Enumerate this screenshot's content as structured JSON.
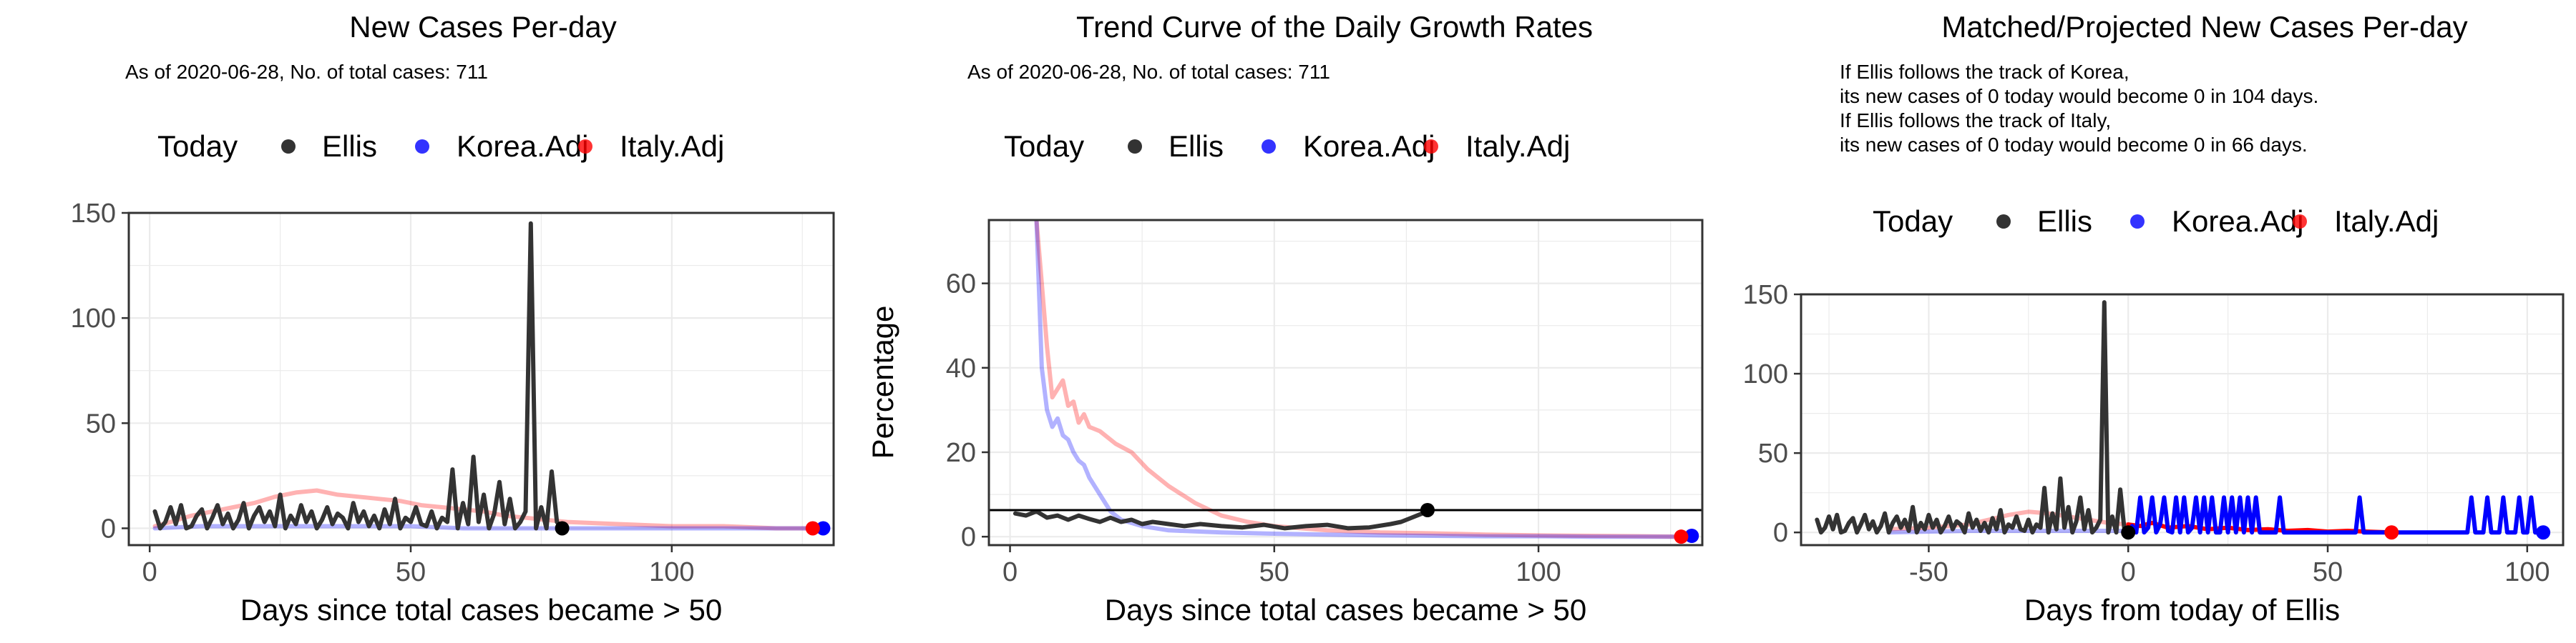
{
  "chart_data": [
    {
      "type": "line",
      "title": "New Cases Per-day",
      "subtitle": "As of 2020-06-28, No. of total cases: 711",
      "legend": {
        "items": [
          "Today",
          "Ellis",
          "Korea.Adj",
          "Italy.Adj"
        ],
        "placement": "top"
      },
      "xlabel": "Days since total cases became > 50",
      "ylabel": "",
      "xlim": [
        -4,
        131
      ],
      "ylim": [
        -8,
        150
      ],
      "xticks": [
        0,
        50,
        100
      ],
      "yticks": [
        0,
        50,
        100,
        150
      ],
      "grid": true,
      "series": [
        {
          "name": "Italy.Adj",
          "color": "#ff0000",
          "opacity": 0.3,
          "x": [
            1,
            4,
            8,
            12,
            16,
            20,
            24,
            28,
            32,
            36,
            40,
            44,
            48,
            52,
            56,
            60,
            64,
            68,
            72,
            76,
            80,
            90,
            100,
            110,
            120,
            127
          ],
          "y": [
            1,
            3,
            6,
            8,
            10,
            12,
            15,
            17,
            18,
            16,
            15,
            14,
            13,
            11,
            10,
            9,
            8,
            6,
            5,
            4,
            3,
            2,
            1,
            1,
            0,
            0
          ]
        },
        {
          "name": "Korea.Adj",
          "color": "#0000ff",
          "opacity": 0.3,
          "x": [
            1,
            10,
            20,
            30,
            40,
            50,
            60,
            70,
            80,
            90,
            100,
            110,
            120,
            129
          ],
          "y": [
            0,
            1,
            1,
            1,
            1,
            1,
            0,
            0,
            0,
            0,
            0,
            0,
            0,
            0
          ]
        },
        {
          "name": "Ellis",
          "color": "#333333",
          "opacity": 1,
          "x": [
            1,
            2,
            3,
            4,
            5,
            6,
            7,
            8,
            9,
            10,
            11,
            12,
            13,
            14,
            15,
            16,
            17,
            18,
            19,
            20,
            21,
            22,
            23,
            24,
            25,
            26,
            27,
            28,
            29,
            30,
            31,
            32,
            33,
            34,
            35,
            36,
            37,
            38,
            39,
            40,
            41,
            42,
            43,
            44,
            45,
            46,
            47,
            48,
            49,
            50,
            51,
            52,
            53,
            54,
            55,
            56,
            57,
            58,
            59,
            60,
            61,
            62,
            63,
            64,
            65,
            66,
            67,
            68,
            69,
            70,
            71,
            72,
            73,
            74,
            75,
            76,
            77,
            78,
            79
          ],
          "y": [
            8,
            0,
            3,
            10,
            2,
            11,
            0,
            1,
            6,
            9,
            0,
            5,
            11,
            2,
            7,
            0,
            4,
            12,
            0,
            6,
            10,
            3,
            8,
            1,
            16,
            0,
            6,
            2,
            11,
            3,
            8,
            0,
            4,
            10,
            2,
            7,
            5,
            0,
            12,
            3,
            8,
            1,
            6,
            0,
            9,
            2,
            14,
            0,
            5,
            3,
            10,
            2,
            1,
            8,
            0,
            5,
            3,
            28,
            0,
            12,
            2,
            34,
            3,
            16,
            0,
            7,
            22,
            2,
            14,
            0,
            3,
            8,
            145,
            0,
            10,
            0,
            27,
            3,
            0
          ]
        }
      ],
      "today_points": [
        {
          "series": "Ellis",
          "x": 79,
          "y": 0,
          "color": "#000000"
        },
        {
          "series": "Korea.Adj",
          "x": 129,
          "y": 0,
          "color": "#0000ff"
        },
        {
          "series": "Italy.Adj",
          "x": 127,
          "y": 0,
          "color": "#ff0000"
        }
      ]
    },
    {
      "type": "line",
      "title": "Trend Curve of the Daily Growth Rates",
      "subtitle": "As of 2020-06-28, No. of total cases: 711",
      "legend": {
        "items": [
          "Today",
          "Ellis",
          "Korea.Adj",
          "Italy.Adj"
        ],
        "placement": "top"
      },
      "xlabel": "Days since total cases became > 50",
      "ylabel": "Percentage",
      "xlim": [
        -4,
        131
      ],
      "ylim": [
        -2,
        75
      ],
      "xticks": [
        0,
        50,
        100
      ],
      "yticks": [
        0,
        20,
        40,
        60
      ],
      "grid": true,
      "hline": 6.3,
      "series": [
        {
          "name": "Italy.Adj",
          "color": "#ff0000",
          "opacity": 0.3,
          "x": [
            5,
            6,
            7,
            8,
            9,
            10,
            11,
            12,
            13,
            14,
            15,
            17,
            20,
            23,
            26,
            30,
            35,
            40,
            45,
            50,
            55,
            60,
            70,
            80,
            90,
            100,
            110,
            120,
            127
          ],
          "y": [
            75,
            60,
            45,
            33,
            35,
            37,
            31,
            32,
            27,
            29,
            26,
            25,
            22,
            20,
            16,
            12,
            8,
            5,
            3.5,
            2.5,
            2,
            1.5,
            1,
            0.8,
            0.5,
            0.3,
            0.2,
            0.1,
            0
          ]
        },
        {
          "name": "Korea.Adj",
          "color": "#0000ff",
          "opacity": 0.3,
          "x": [
            5,
            6,
            7,
            8,
            9,
            10,
            11,
            12,
            13,
            14,
            15,
            17,
            19,
            21,
            25,
            30,
            40,
            50,
            60,
            70,
            80,
            90,
            100,
            110,
            120,
            129
          ],
          "y": [
            75,
            40,
            30,
            26,
            28,
            24,
            23,
            20,
            18,
            17,
            14,
            10,
            6,
            4,
            2.5,
            1.5,
            1,
            0.7,
            0.5,
            0.3,
            0.2,
            0.1,
            0.1,
            0,
            0,
            0
          ]
        },
        {
          "name": "Ellis",
          "color": "#333333",
          "opacity": 1,
          "x": [
            1,
            3,
            5,
            7,
            9,
            11,
            13,
            15,
            17,
            19,
            21,
            23,
            25,
            27,
            30,
            33,
            36,
            40,
            44,
            48,
            52,
            56,
            60,
            64,
            68,
            72,
            74,
            76,
            78,
            79
          ],
          "y": [
            5.5,
            5,
            6,
            4.5,
            5,
            4,
            5,
            4.2,
            3.5,
            4.5,
            3.5,
            4,
            3,
            3.5,
            3,
            2.5,
            3,
            2.5,
            2.2,
            2.8,
            2,
            2.5,
            2.8,
            2,
            2.2,
            3,
            3.5,
            4.5,
            5.5,
            6.3
          ]
        }
      ],
      "today_points": [
        {
          "series": "Ellis",
          "x": 79,
          "y": 6.3,
          "color": "#000000"
        },
        {
          "series": "Korea.Adj",
          "x": 129,
          "y": 0.2,
          "color": "#0000ff"
        },
        {
          "series": "Italy.Adj",
          "x": 127,
          "y": 0,
          "color": "#ff0000"
        }
      ]
    },
    {
      "type": "line",
      "title": "Matched/Projected New Cases Per-day",
      "subtitle_lines": [
        "If Ellis follows the track of Korea,",
        "its new cases of 0 today would become 0 in 104 days.",
        "If Ellis follows the track of Italy,",
        "its new cases of 0 today would become 0 in 66 days."
      ],
      "legend": {
        "items": [
          "Today",
          "Ellis",
          "Korea.Adj",
          "Italy.Adj"
        ],
        "placement": "top"
      },
      "xlabel": "Days from today of Ellis",
      "ylabel": "",
      "xlim": [
        -82,
        109
      ],
      "ylim": [
        -8,
        150
      ],
      "xticks": [
        -50,
        0,
        50,
        100
      ],
      "yticks": [
        0,
        50,
        100,
        150
      ],
      "grid": true,
      "series": [
        {
          "name": "Italy.Adj.past",
          "color": "#ff0000",
          "opacity": 0.3,
          "x": [
            -60,
            -50,
            -40,
            -35,
            -30,
            -25,
            -20,
            -15,
            -10,
            -5,
            0
          ],
          "y": [
            2,
            3,
            5,
            8,
            11,
            13,
            12,
            10,
            8,
            6,
            5
          ]
        },
        {
          "name": "Korea.Adj.past",
          "color": "#0000ff",
          "opacity": 0.3,
          "x": [
            -60,
            -40,
            -20,
            0
          ],
          "y": [
            0,
            1,
            1,
            1
          ]
        },
        {
          "name": "Ellis",
          "color": "#333333",
          "opacity": 1,
          "x": [
            -78,
            -77,
            -76,
            -75,
            -74,
            -73,
            -72,
            -71,
            -70,
            -69,
            -68,
            -67,
            -66,
            -65,
            -64,
            -63,
            -62,
            -61,
            -60,
            -59,
            -58,
            -57,
            -56,
            -55,
            -54,
            -53,
            -52,
            -51,
            -50,
            -49,
            -48,
            -47,
            -46,
            -45,
            -44,
            -43,
            -42,
            -41,
            -40,
            -39,
            -38,
            -37,
            -36,
            -35,
            -34,
            -33,
            -32,
            -31,
            -30,
            -29,
            -28,
            -27,
            -26,
            -25,
            -24,
            -23,
            -22,
            -21,
            -20,
            -19,
            -18,
            -17,
            -16,
            -15,
            -14,
            -13,
            -12,
            -11,
            -10,
            -9,
            -8,
            -7,
            -6,
            -5,
            -4,
            -3,
            -2,
            -1,
            0
          ],
          "y": [
            8,
            0,
            3,
            10,
            2,
            11,
            0,
            1,
            6,
            9,
            0,
            5,
            11,
            2,
            7,
            0,
            4,
            12,
            0,
            6,
            10,
            3,
            8,
            1,
            16,
            0,
            6,
            2,
            11,
            3,
            8,
            0,
            4,
            10,
            2,
            7,
            5,
            0,
            12,
            3,
            8,
            1,
            6,
            0,
            9,
            2,
            14,
            0,
            5,
            3,
            10,
            2,
            1,
            8,
            0,
            5,
            3,
            28,
            0,
            12,
            2,
            34,
            3,
            16,
            0,
            7,
            22,
            2,
            14,
            0,
            3,
            8,
            145,
            0,
            10,
            0,
            27,
            3,
            0
          ]
        },
        {
          "name": "Italy.Adj",
          "color": "#ff0000",
          "opacity": 1,
          "x": [
            0,
            3,
            6,
            10,
            15,
            20,
            25,
            30,
            35,
            40,
            45,
            50,
            55,
            60,
            66
          ],
          "y": [
            5,
            4,
            6,
            3,
            4,
            2,
            3,
            1.5,
            2,
            1,
            1.5,
            0.5,
            1,
            0.5,
            0
          ]
        },
        {
          "name": "Korea.Adj",
          "color": "#0000ff",
          "opacity": 1,
          "style": "spiky",
          "x": [
            0,
            1,
            2,
            3,
            4,
            5,
            6,
            7,
            8,
            9,
            10,
            11,
            12,
            13,
            14,
            15,
            16,
            17,
            18,
            19,
            20,
            21,
            22,
            23,
            24,
            25,
            26,
            27,
            28,
            29,
            30,
            31,
            32,
            33,
            34,
            35,
            36,
            37,
            38,
            39,
            40,
            41,
            42,
            43,
            44,
            45,
            46,
            47,
            48,
            49,
            50,
            51,
            52,
            53,
            54,
            55,
            56,
            57,
            58,
            59,
            60,
            61,
            62,
            63,
            64,
            65,
            66,
            67,
            68,
            69,
            70,
            71,
            72,
            73,
            74,
            75,
            76,
            77,
            78,
            79,
            80,
            81,
            82,
            83,
            84,
            85,
            86,
            87,
            88,
            89,
            90,
            91,
            92,
            93,
            94,
            95,
            96,
            97,
            98,
            99,
            100,
            101,
            102,
            103,
            104
          ],
          "y": [
            0,
            4,
            0,
            22,
            0,
            3,
            22,
            0,
            5,
            22,
            1,
            0,
            22,
            0,
            22,
            0,
            3,
            22,
            0,
            22,
            0,
            22,
            0,
            0,
            22,
            0,
            22,
            0,
            22,
            0,
            22,
            0,
            22,
            0,
            0,
            0,
            0,
            0,
            22,
            0,
            0,
            0,
            0,
            0,
            0,
            0,
            0,
            0,
            0,
            0,
            0,
            0,
            0,
            0,
            0,
            0,
            0,
            0,
            22,
            0,
            0,
            0,
            0,
            0,
            0,
            0,
            0,
            0,
            0,
            0,
            0,
            0,
            0,
            0,
            0,
            0,
            0,
            0,
            0,
            0,
            0,
            0,
            0,
            0,
            0,
            0,
            22,
            0,
            0,
            0,
            22,
            0,
            0,
            0,
            22,
            0,
            0,
            0,
            22,
            0,
            0,
            22,
            0,
            0,
            0
          ]
        }
      ],
      "today_points": [
        {
          "series": "Ellis",
          "x": 0,
          "y": 0,
          "color": "#000000"
        },
        {
          "series": "Korea.Adj",
          "x": 104,
          "y": 0,
          "color": "#0000ff"
        },
        {
          "series": "Italy.Adj",
          "x": 66,
          "y": 0,
          "color": "#ff0000"
        }
      ]
    }
  ]
}
